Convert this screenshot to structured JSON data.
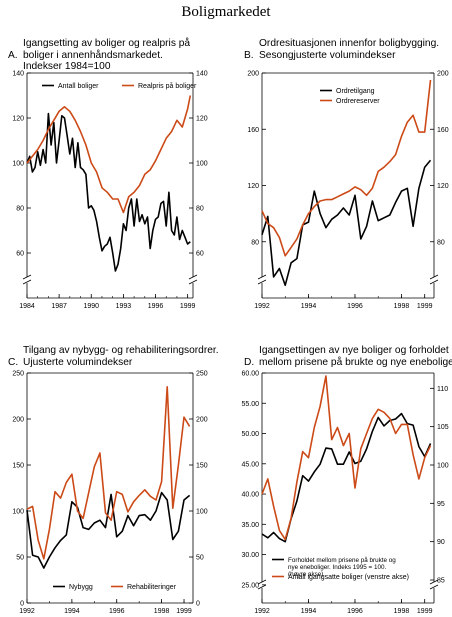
{
  "page": {
    "title": "Boligmarkedet"
  },
  "panels": [
    {
      "id": "A",
      "letter": "A.",
      "title": "Igangsetting av boliger og  realpris på\nboliger i annenhåndsmarkedet.\nIndekser 1984=100"
    },
    {
      "id": "B",
      "letter": "B.",
      "title": "Ordresituasjonen innenfor boligbygging.\nSesongjusterte volumindekser"
    },
    {
      "id": "C",
      "letter": "C.",
      "title": "Tilgang av nybygg- og rehabiliteringsordrer.\nUjusterte volumindekser"
    },
    {
      "id": "D",
      "letter": "D.",
      "title": "Igangsettingen av nye boliger og forholdet\nmellom prisene på brukte og nye eneboliger"
    }
  ],
  "colors": {
    "black_series": "#000000",
    "orange_series": "#cc4a17",
    "axis": "#000000"
  },
  "chart_data": [
    {
      "id": "A",
      "type": "line",
      "xlim": [
        1984,
        1999.5
      ],
      "ylim": [
        40,
        140
      ],
      "axis_break": true,
      "x_ticks": [
        1984,
        1987,
        1990,
        1993,
        1996,
        1999
      ],
      "x_tick_labels": [
        "1984",
        "1987",
        "1990",
        "1993",
        "1996",
        "1999"
      ],
      "y_ticks": [
        60,
        80,
        100,
        120,
        140
      ],
      "y_tick_labels": [
        "60",
        "80",
        "100",
        "120",
        "140"
      ],
      "y2_ticks": [
        60,
        80,
        100,
        120,
        140
      ],
      "y2_tick_labels": [
        "60",
        "80",
        "100",
        "120",
        "140"
      ],
      "legend": {
        "placement": "top-left"
      },
      "series": [
        {
          "name": "Antall boliger",
          "color": "#000000",
          "axis": "left",
          "x": [
            1984.0,
            1984.25,
            1984.5,
            1984.75,
            1985.0,
            1985.25,
            1985.5,
            1985.75,
            1986.0,
            1986.25,
            1986.5,
            1986.75,
            1987.0,
            1987.25,
            1987.5,
            1987.75,
            1988.0,
            1988.25,
            1988.5,
            1988.75,
            1989.0,
            1989.25,
            1989.5,
            1989.75,
            1990.0,
            1990.25,
            1990.5,
            1990.75,
            1991.0,
            1991.25,
            1991.5,
            1991.75,
            1992.0,
            1992.25,
            1992.5,
            1992.75,
            1993.0,
            1993.25,
            1993.5,
            1993.75,
            1994.0,
            1994.25,
            1994.5,
            1994.75,
            1995.0,
            1995.25,
            1995.5,
            1995.75,
            1996.0,
            1996.25,
            1996.5,
            1996.75,
            1997.0,
            1997.25,
            1997.5,
            1997.75,
            1998.0,
            1998.25,
            1998.5,
            1998.75,
            1999.0,
            1999.25
          ],
          "y": [
            100,
            103,
            96,
            98,
            105,
            99,
            106,
            100,
            122,
            108,
            118,
            100,
            110,
            121,
            120,
            112,
            104,
            111,
            98,
            109,
            98,
            97,
            95,
            80,
            81,
            79,
            74,
            67,
            61,
            63,
            64,
            67,
            60,
            52,
            55,
            62,
            73,
            70,
            80,
            84,
            72,
            84,
            74,
            77,
            73,
            76,
            62,
            70,
            75,
            76,
            82,
            83,
            72,
            87,
            70,
            68,
            76,
            66,
            70,
            67,
            64,
            65
          ]
        },
        {
          "name": "Realpris på boliger",
          "color": "#cc4a17",
          "axis": "left",
          "x": [
            1984.0,
            1984.5,
            1985.0,
            1985.5,
            1986.0,
            1986.5,
            1987.0,
            1987.5,
            1988.0,
            1988.5,
            1989.0,
            1989.5,
            1990.0,
            1990.5,
            1991.0,
            1991.5,
            1992.0,
            1992.5,
            1993.0,
            1993.5,
            1994.0,
            1994.5,
            1995.0,
            1995.5,
            1996.0,
            1996.5,
            1997.0,
            1997.5,
            1998.0,
            1998.5,
            1999.0,
            1999.25
          ],
          "y": [
            100,
            103,
            106,
            110,
            115,
            119,
            123,
            125,
            123,
            119,
            114,
            108,
            100,
            96,
            89,
            87,
            84,
            84,
            78,
            85,
            87,
            90,
            95,
            97,
            101,
            106,
            111,
            114,
            119,
            116,
            124,
            130
          ]
        }
      ]
    },
    {
      "id": "B",
      "type": "line",
      "xlim": [
        1992,
        1999.4
      ],
      "ylim": [
        40,
        200
      ],
      "axis_break": true,
      "x_ticks": [
        1992,
        1994,
        1996,
        1998,
        1999
      ],
      "x_tick_labels": [
        "1992",
        "1994",
        "1996",
        "1998",
        "1999"
      ],
      "y_ticks": [
        80,
        120,
        160,
        200
      ],
      "y_tick_labels": [
        "80",
        "120",
        "160",
        "200"
      ],
      "y2_ticks": [
        80,
        120,
        160,
        200
      ],
      "y2_tick_labels": [
        "80",
        "120",
        "160",
        "200"
      ],
      "legend": {
        "placement": "top-center"
      },
      "series": [
        {
          "name": "Ordretilgang",
          "color": "#000000",
          "axis": "left",
          "x": [
            1992.0,
            1992.25,
            1992.5,
            1992.75,
            1993.0,
            1993.25,
            1993.5,
            1993.75,
            1994.0,
            1994.25,
            1994.5,
            1994.75,
            1995.0,
            1995.25,
            1995.5,
            1995.75,
            1996.0,
            1996.25,
            1996.5,
            1996.75,
            1997.0,
            1997.25,
            1997.5,
            1997.75,
            1998.0,
            1998.25,
            1998.5,
            1998.75,
            1999.0,
            1999.25
          ],
          "y": [
            85,
            98,
            55,
            61,
            49,
            65,
            68,
            92,
            94,
            116,
            100,
            90,
            96,
            99,
            104,
            99,
            113,
            82,
            91,
            109,
            95,
            97,
            99,
            108,
            116,
            118,
            91,
            118,
            133,
            138
          ]
        },
        {
          "name": "Ordrereserver",
          "color": "#cc4a17",
          "axis": "left",
          "x": [
            1992.0,
            1992.25,
            1992.5,
            1992.75,
            1993.0,
            1993.25,
            1993.5,
            1993.75,
            1994.0,
            1994.25,
            1994.5,
            1994.75,
            1995.0,
            1995.25,
            1995.5,
            1995.75,
            1996.0,
            1996.25,
            1996.5,
            1996.75,
            1997.0,
            1997.25,
            1997.5,
            1997.75,
            1998.0,
            1998.25,
            1998.5,
            1998.75,
            1999.0,
            1999.25
          ],
          "y": [
            102,
            93,
            90,
            83,
            70,
            76,
            82,
            92,
            100,
            105,
            109,
            110,
            110,
            112,
            114,
            116,
            119,
            117,
            113,
            118,
            130,
            133,
            137,
            142,
            155,
            165,
            170,
            158,
            158,
            195
          ]
        }
      ]
    },
    {
      "id": "C",
      "type": "line",
      "xlim": [
        1992,
        1999.4
      ],
      "ylim": [
        0,
        250
      ],
      "x_ticks": [
        1992,
        1994,
        1996,
        1998,
        1999
      ],
      "x_tick_labels": [
        "1992",
        "1994",
        "1996",
        "1998",
        "1999"
      ],
      "y_ticks": [
        0,
        50,
        100,
        150,
        200,
        250
      ],
      "y_tick_labels": [
        "0",
        "50",
        "100",
        "150",
        "200",
        "250"
      ],
      "y2_ticks": [
        0,
        50,
        100,
        150,
        200,
        250
      ],
      "y2_tick_labels": [
        "0",
        "50",
        "100",
        "150",
        "200",
        "250"
      ],
      "legend": {
        "placement": "bottom-center"
      },
      "series": [
        {
          "name": "Nybygg",
          "color": "#000000",
          "axis": "left",
          "x": [
            1992.0,
            1992.25,
            1992.5,
            1992.75,
            1993.0,
            1993.25,
            1993.5,
            1993.75,
            1994.0,
            1994.25,
            1994.5,
            1994.75,
            1995.0,
            1995.25,
            1995.5,
            1995.75,
            1996.0,
            1996.25,
            1996.5,
            1996.75,
            1997.0,
            1997.25,
            1997.5,
            1997.75,
            1998.0,
            1998.25,
            1998.5,
            1998.75,
            1999.0,
            1999.25
          ],
          "y": [
            101,
            52,
            50,
            38,
            50,
            60,
            68,
            74,
            110,
            104,
            82,
            80,
            87,
            90,
            82,
            118,
            72,
            78,
            95,
            84,
            95,
            96,
            90,
            100,
            120,
            112,
            69,
            78,
            112,
            117
          ]
        },
        {
          "name": "Rehabiliteringer",
          "color": "#cc4a17",
          "axis": "left",
          "x": [
            1992.0,
            1992.25,
            1992.5,
            1992.75,
            1993.0,
            1993.25,
            1993.5,
            1993.75,
            1994.0,
            1994.25,
            1994.5,
            1994.75,
            1995.0,
            1995.25,
            1995.5,
            1995.75,
            1996.0,
            1996.25,
            1996.5,
            1996.75,
            1997.0,
            1997.25,
            1997.5,
            1997.75,
            1998.0,
            1998.25,
            1998.5,
            1998.75,
            1999.0,
            1999.25
          ],
          "y": [
            102,
            105,
            68,
            48,
            80,
            121,
            114,
            131,
            140,
            100,
            92,
            120,
            148,
            163,
            98,
            90,
            121,
            118,
            99,
            110,
            117,
            123,
            116,
            112,
            132,
            235,
            103,
            150,
            202,
            192
          ]
        }
      ]
    },
    {
      "id": "D",
      "type": "line",
      "xlim": [
        1992,
        1999.4
      ],
      "ylim": [
        22,
        60
      ],
      "axis_break": true,
      "x_ticks": [
        1992,
        1994,
        1996,
        1998,
        1999
      ],
      "x_tick_labels": [
        "1992",
        "1994",
        "1996",
        "1998",
        "1999"
      ],
      "y_ticks": [
        25,
        30,
        35,
        40,
        45,
        50,
        55,
        60
      ],
      "y_tick_labels": [
        "25.00",
        "30.00",
        "35.00",
        "40.00",
        "45.00",
        "50.00",
        "55.00",
        "60.00"
      ],
      "y2_range": [
        82,
        112
      ],
      "y2_ticks": [
        85,
        90,
        95,
        100,
        105,
        110
      ],
      "y2_tick_labels": [
        "85",
        "90",
        "95",
        "100",
        "105",
        "110"
      ],
      "legend": {
        "placement": "bottom-center"
      },
      "series": [
        {
          "name": "Forholdet mellom prisene på brukte og nye eneboliger. Indeks 1995 = 100. (høyre akse)",
          "color": "#000000",
          "axis": "right",
          "x": [
            1992.0,
            1992.25,
            1992.5,
            1992.75,
            1993.0,
            1993.25,
            1993.5,
            1993.75,
            1994.0,
            1994.25,
            1994.5,
            1994.75,
            1995.0,
            1995.25,
            1995.5,
            1995.75,
            1996.0,
            1996.25,
            1996.5,
            1996.75,
            1997.0,
            1997.25,
            1997.5,
            1997.75,
            1998.0,
            1998.25,
            1998.5,
            1998.75,
            1999.0,
            1999.25
          ],
          "y": [
            91,
            90.5,
            91.2,
            90.4,
            90,
            93,
            95.3,
            98.6,
            97.9,
            99.1,
            100.1,
            102.2,
            102.1,
            100.1,
            100.1,
            101.7,
            100.2,
            100.5,
            102.1,
            104.4,
            106.2,
            105.1,
            105.8,
            106,
            106.7,
            105.4,
            105.2,
            102.4,
            101.1,
            102.8
          ]
        },
        {
          "name": "Antall igangsatte boliger (venstre akse)",
          "color": "#cc4a17",
          "axis": "left",
          "x": [
            1992.0,
            1992.25,
            1992.5,
            1992.75,
            1993.0,
            1993.25,
            1993.5,
            1993.75,
            1994.0,
            1994.25,
            1994.5,
            1994.75,
            1995.0,
            1995.25,
            1995.5,
            1995.75,
            1996.0,
            1996.25,
            1996.5,
            1996.75,
            1997.0,
            1997.25,
            1997.5,
            1997.75,
            1998.0,
            1998.25,
            1998.5,
            1998.75,
            1999.0,
            1999.25
          ],
          "y": [
            40,
            42.5,
            38,
            34,
            32.5,
            36,
            42,
            47,
            46,
            51,
            54.5,
            59.5,
            49,
            51,
            48,
            50,
            41,
            47.5,
            50,
            52.5,
            54,
            53.5,
            52.5,
            50,
            51.5,
            51.5,
            46.5,
            42.5,
            46,
            48
          ]
        }
      ]
    }
  ]
}
